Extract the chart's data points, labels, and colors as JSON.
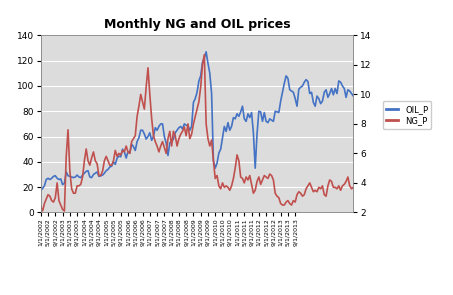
{
  "title": "Monthly NG and OIL prices",
  "oil_label": "OIL_P",
  "ng_label": "NG_P",
  "oil_color": "#4472C4",
  "ng_color": "#C0504D",
  "figure_bg": "#FFFFFF",
  "plot_bg_color": "#DCDCDC",
  "ylim_left": [
    0,
    140
  ],
  "ylim_right": [
    2,
    14
  ],
  "yticks_left": [
    0,
    20,
    40,
    60,
    80,
    100,
    120,
    140
  ],
  "yticks_right": [
    2,
    4,
    6,
    8,
    10,
    12,
    14
  ],
  "oil_prices": [
    17.5,
    19.0,
    21.0,
    26.0,
    27.0,
    26.0,
    27.0,
    28.5,
    29.0,
    27.0,
    26.0,
    26.5,
    22.0,
    23.0,
    32.0,
    29.0,
    28.5,
    28.0,
    27.5,
    28.0,
    29.5,
    28.0,
    27.5,
    29.5,
    31.0,
    32.5,
    33.0,
    28.0,
    27.5,
    30.0,
    31.0,
    32.0,
    28.5,
    29.0,
    29.5,
    31.0,
    33.0,
    34.0,
    36.0,
    36.5,
    40.0,
    38.0,
    43.0,
    44.5,
    44.0,
    50.0,
    48.0,
    43.0,
    48.0,
    47.0,
    54.0,
    52.0,
    49.0,
    56.0,
    59.0,
    65.0,
    65.0,
    62.0,
    58.0,
    60.0,
    63.0,
    57.0,
    60.0,
    67.0,
    65.0,
    68.0,
    70.0,
    70.0,
    60.0,
    55.0,
    45.0,
    55.0,
    56.0,
    58.0,
    63.0,
    65.0,
    67.0,
    68.0,
    66.0,
    70.0,
    69.0,
    68.5,
    65.0,
    68.0,
    87.0,
    90.0,
    95.0,
    104.0,
    108.0,
    119.0,
    122.0,
    127.0,
    118.0,
    110.0,
    94.0,
    41.0,
    35.0,
    39.0,
    47.0,
    50.0,
    59.0,
    68.0,
    64.0,
    71.0,
    65.0,
    68.0,
    75.0,
    74.0,
    78.0,
    76.0,
    79.5,
    84.0,
    74.0,
    72.0,
    78.0,
    75.0,
    79.0,
    63.0,
    35.0,
    62.0,
    80.0,
    79.5,
    72.0,
    79.0,
    72.0,
    71.0,
    74.0,
    73.0,
    72.0,
    80.0,
    79.5,
    79.0,
    88.0,
    95.0,
    102.0,
    108.0,
    106.0,
    97.0,
    96.0,
    95.0,
    90.0,
    84.0,
    97.5,
    99.0,
    100.0,
    103.0,
    105.0,
    103.5,
    94.0,
    95.0,
    87.0,
    84.0,
    92.0,
    90.0,
    86.0,
    88.0,
    95.0,
    97.0,
    91.0,
    94.0,
    98.0,
    93.0,
    98.0,
    94.0,
    104.0,
    103.0,
    100.0,
    98.0,
    91.0,
    97.0,
    96.0,
    94.0,
    92.0
  ],
  "ng_prices": [
    2.4,
    2.1,
    2.6,
    2.9,
    3.2,
    3.1,
    2.8,
    2.7,
    3.0,
    4.0,
    2.8,
    2.5,
    2.2,
    2.1,
    5.8,
    7.6,
    4.8,
    3.6,
    3.3,
    3.3,
    3.8,
    3.8,
    3.9,
    4.4,
    5.5,
    6.3,
    5.5,
    5.2,
    5.7,
    6.1,
    5.5,
    5.3,
    4.5,
    4.5,
    4.8,
    5.5,
    5.8,
    5.5,
    5.2,
    5.2,
    5.5,
    6.2,
    5.8,
    6.0,
    5.9,
    6.2,
    6.1,
    6.5,
    6.1,
    6.0,
    6.8,
    7.0,
    7.2,
    8.5,
    9.2,
    10.0,
    9.5,
    9.0,
    10.5,
    11.8,
    10.0,
    8.4,
    7.2,
    6.8,
    6.5,
    6.1,
    6.5,
    6.8,
    6.4,
    6.0,
    7.0,
    7.5,
    6.5,
    7.5,
    7.2,
    6.5,
    7.0,
    7.3,
    7.5,
    7.8,
    7.2,
    8.0,
    7.0,
    7.3,
    8.0,
    8.5,
    9.0,
    9.5,
    10.5,
    12.0,
    12.7,
    8.0,
    7.0,
    6.5,
    6.9,
    5.5,
    4.3,
    4.5,
    3.8,
    3.6,
    4.0,
    3.7,
    3.8,
    3.7,
    3.5,
    3.8,
    4.3,
    5.0,
    5.9,
    5.5,
    4.4,
    4.3,
    4.0,
    4.4,
    4.2,
    4.5,
    3.9,
    3.3,
    3.5,
    4.1,
    4.4,
    3.9,
    4.2,
    4.5,
    4.4,
    4.3,
    4.6,
    4.5,
    4.2,
    3.3,
    3.1,
    3.0,
    2.6,
    2.5,
    2.5,
    2.7,
    2.8,
    2.6,
    2.5,
    2.8,
    2.7,
    3.2,
    3.4,
    3.3,
    3.1,
    3.2,
    3.6,
    3.8,
    4.0,
    3.7,
    3.4,
    3.5,
    3.4,
    3.7,
    3.6,
    3.8,
    3.2,
    3.1,
    3.8,
    4.2,
    4.1,
    3.7,
    3.7,
    3.6,
    3.8,
    3.5,
    3.8,
    3.9,
    4.1,
    4.4,
    3.8,
    3.6,
    3.7
  ],
  "xtick_labels": [
    "1/1/2002",
    "5/1/2002",
    "9/1/2002",
    "1/1/2003",
    "5/1/2003",
    "9/1/2003",
    "1/1/2004",
    "5/1/2004",
    "9/1/2004",
    "1/1/2005",
    "5/1/2005",
    "9/1/2005",
    "1/1/2006",
    "5/1/2006",
    "9/1/2006",
    "1/1/2007",
    "5/1/2007",
    "9/1/2007",
    "1/1/2008",
    "5/1/2008",
    "9/1/2008",
    "1/1/2009",
    "5/1/2009",
    "9/1/2009",
    "1/1/2010",
    "5/1/2010",
    "9/1/2010",
    "1/1/2011",
    "5/1/2011",
    "9/1/2011",
    "1/1/2012",
    "5/1/2012",
    "9/1/2012",
    "1/1/2013",
    "5/1/2013",
    "9/1/2013"
  ],
  "xtick_positions": [
    0,
    4,
    8,
    12,
    16,
    20,
    24,
    28,
    32,
    36,
    40,
    44,
    48,
    52,
    56,
    60,
    64,
    68,
    72,
    76,
    80,
    84,
    88,
    92,
    96,
    100,
    104,
    108,
    112,
    116,
    120,
    124,
    128,
    132,
    136,
    140
  ],
  "line_width": 1.2
}
